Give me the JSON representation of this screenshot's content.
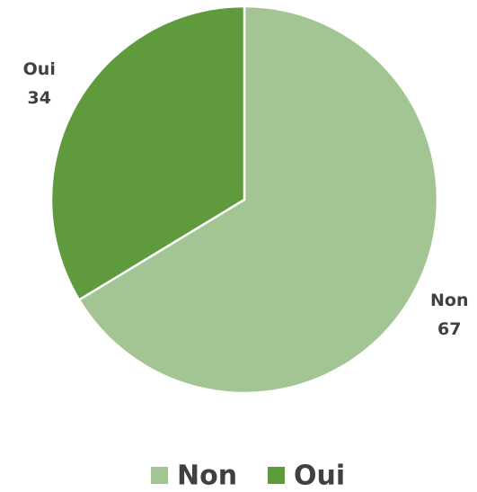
{
  "chart_data": {
    "type": "pie",
    "categories": [
      "Non",
      "Oui"
    ],
    "values": [
      67,
      34
    ],
    "colors": [
      "#a3c593",
      "#5f9a3c"
    ],
    "legend": "bottom"
  }
}
